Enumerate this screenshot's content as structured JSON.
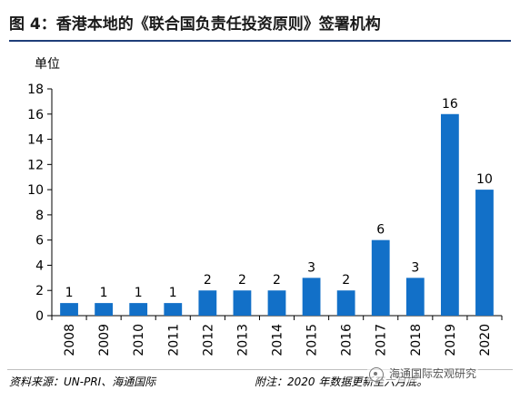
{
  "title": "图 4：香港本地的《联合国负责任投资原则》签署机构",
  "chart_data": {
    "type": "bar",
    "ylabel": "单位",
    "ylim": [
      0,
      18
    ],
    "yticks": [
      0,
      2,
      4,
      6,
      8,
      10,
      12,
      14,
      16,
      18
    ],
    "categories": [
      "2008",
      "2009",
      "2010",
      "2011",
      "2012",
      "2013",
      "2014",
      "2015",
      "2016",
      "2017",
      "2018",
      "2019",
      "2020"
    ],
    "values": [
      1,
      1,
      1,
      1,
      2,
      2,
      2,
      3,
      2,
      6,
      3,
      16,
      10
    ],
    "bar_color": "#1270C8",
    "data_labels": true,
    "grid": false,
    "legend": "none"
  },
  "footer": {
    "source": "资料来源：UN-PRI、海通国际",
    "note": "附注：2020 年数据更新至六月底。"
  },
  "watermark": "海通国际宏观研究"
}
